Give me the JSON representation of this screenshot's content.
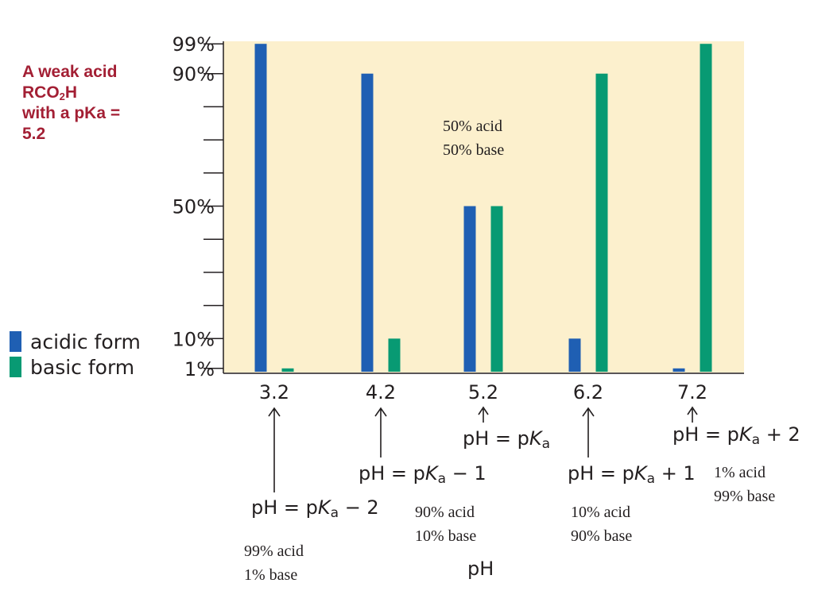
{
  "side_title": {
    "line1": "A weak acid",
    "line2_main": "RCO",
    "line2_sub": "2",
    "line2_tail": "H",
    "line3": "with a pKa =",
    "line4": "5.2"
  },
  "legend": {
    "items": [
      {
        "label": "acidic form",
        "color": "#1f5fb3"
      },
      {
        "label": "basic form",
        "color": "#089a73"
      }
    ]
  },
  "chart_data": {
    "type": "bar",
    "categories": [
      "3.2",
      "4.2",
      "5.2",
      "6.2",
      "7.2"
    ],
    "series": [
      {
        "name": "acidic form",
        "values": [
          99,
          90,
          50,
          10,
          1
        ],
        "color": "#1f5fb3"
      },
      {
        "name": "basic form",
        "values": [
          1,
          10,
          50,
          90,
          99
        ],
        "color": "#089a73"
      }
    ],
    "xlabel": "pH",
    "ylabel": "",
    "ylim": [
      0,
      100
    ],
    "yticks": [
      {
        "value": 99,
        "label": "99%"
      },
      {
        "value": 90,
        "label": "90%"
      },
      {
        "value": 80,
        "label": ""
      },
      {
        "value": 70,
        "label": ""
      },
      {
        "value": 60,
        "label": ""
      },
      {
        "value": 50,
        "label": "50%"
      },
      {
        "value": 40,
        "label": ""
      },
      {
        "value": 30,
        "label": ""
      },
      {
        "value": 20,
        "label": ""
      },
      {
        "value": 10,
        "label": "10%"
      },
      {
        "value": 1,
        "label": "1%"
      }
    ],
    "plot_background": "#fcf0cd",
    "grid": false,
    "legend_position": "left"
  },
  "annotations": {
    "center_note": {
      "line1": "50% acid",
      "line2": "50% base"
    },
    "eq_pka": {
      "prefix": "pH = p",
      "k": "K",
      "sub": "a",
      "suffix": ""
    },
    "eq_minus1": {
      "prefix": "pH = p",
      "k": "K",
      "sub": "a",
      "suffix": " − 1"
    },
    "eq_plus1": {
      "prefix": "pH = p",
      "k": "K",
      "sub": "a",
      "suffix": " + 1"
    },
    "eq_plus2": {
      "prefix": "pH = p",
      "k": "K",
      "sub": "a",
      "suffix": " + 2"
    },
    "eq_minus2": {
      "prefix": "pH = p",
      "k": "K",
      "sub": "a",
      "suffix": " − 2"
    },
    "note_32": {
      "line1": "99% acid",
      "line2": "1% base"
    },
    "note_42": {
      "line1": "90% acid",
      "line2": "10% base"
    },
    "note_62": {
      "line1": "10% acid",
      "line2": "90% base"
    },
    "note_72": {
      "line1": "1% acid",
      "line2": "99% base"
    }
  }
}
